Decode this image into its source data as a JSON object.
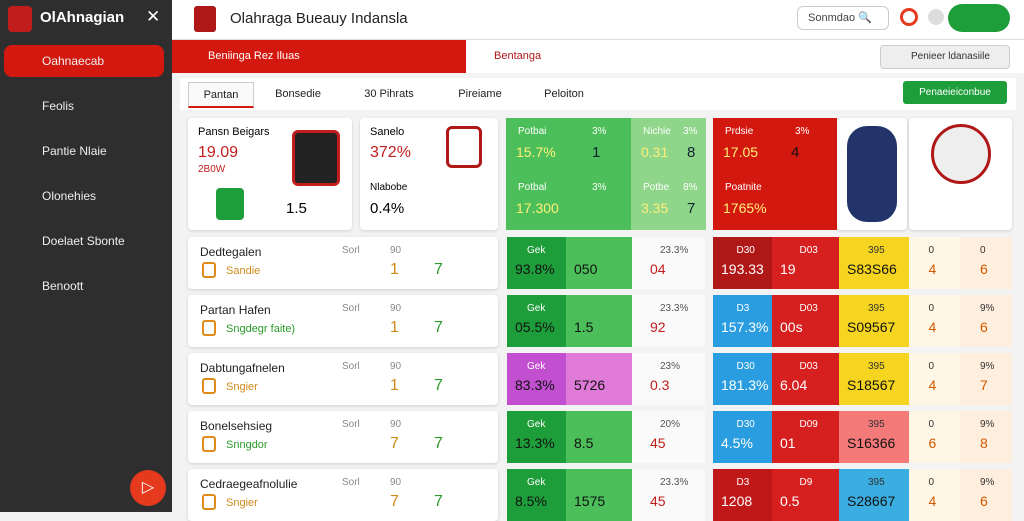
{
  "sidebar": {
    "brand": "OlAhnagian",
    "nav": [
      "Oahnaecab",
      "Feolis",
      "Pantie Nlaie",
      "Olonehies",
      "Doelaet Sbonte",
      "Benoott"
    ]
  },
  "header": {
    "title": "Olahraga Bueauy Indansla",
    "search": "Sonmdao"
  },
  "tabs": {
    "active": "Beniinga Rez Iluas",
    "second": "Bentanga",
    "action": "Penieer ldanasiile"
  },
  "subtabs": [
    "Pantan",
    "Bonsedie",
    "30 Pihrats",
    "Pireiame",
    "Peloiton"
  ],
  "subaction": "Penaeieiconbue",
  "summary": {
    "card1": {
      "title": "Pansn Beigars",
      "value": "19.09",
      "sub": "2B0W",
      "score": "1.5"
    },
    "card2": {
      "title": "Sanelo",
      "value": "372%",
      "label": "Nlabobe",
      "value2": "0.4%"
    },
    "green": [
      {
        "label": "Potbai",
        "pct": "3%",
        "value": "15.7%",
        "num": "1"
      },
      {
        "label": "Nichie",
        "pct": "3%",
        "value": "0.31",
        "num": "8"
      },
      {
        "label": "Potbal",
        "pct": "3%",
        "value": "17.300"
      },
      {
        "label": "Potbe",
        "pct": "8%",
        "value": "3.35",
        "num": "7"
      }
    ],
    "red": [
      {
        "label": "Prdsie",
        "pct": "3%",
        "value": "17.05",
        "num": "4"
      },
      {
        "label": "Poatnite",
        "value": "1765%"
      }
    ]
  },
  "rows": [
    {
      "name": "Dedtegalen",
      "sub": "Sandie",
      "col1": "Sorl",
      "col2": "90",
      "a": "1",
      "b": "7",
      "mid": [
        {
          "label": "Gek",
          "value": "93.8%"
        },
        {
          "value": "050"
        },
        {
          "label": "23.3%",
          "value": "04"
        }
      ],
      "mid_colors": [
        "#1e9e3a",
        "#4cbf5a"
      ],
      "right": [
        {
          "label": "D30",
          "value": "193.33"
        },
        {
          "label": "D03",
          "value": "19"
        },
        {
          "label": "395",
          "value": "S83S66"
        },
        {
          "label": "0",
          "value": "4"
        },
        {
          "label": "0",
          "value": "6"
        }
      ],
      "right_colors": [
        "#b01818",
        "#d62020",
        "#f5d520"
      ]
    },
    {
      "name": "Partan Hafen",
      "sub": "Sngdegr faite)",
      "col1": "Sorl",
      "col2": "90",
      "a": "1",
      "b": "7",
      "mid": [
        {
          "label": "Gek",
          "value": "05.5%"
        },
        {
          "value": "1.5"
        },
        {
          "label": "23.3%",
          "value": "92"
        }
      ],
      "mid_colors": [
        "#1e9e3a",
        "#4cbf5a"
      ],
      "right": [
        {
          "label": "D3",
          "value": "157.3%"
        },
        {
          "label": "D03",
          "value": "00s"
        },
        {
          "label": "395",
          "value": "S09567"
        },
        {
          "label": "0",
          "value": "4"
        },
        {
          "label": "9%",
          "value": "6"
        }
      ],
      "right_colors": [
        "#2a9de0",
        "#d62020",
        "#f5d520"
      ]
    },
    {
      "name": "Dabtungafnelen",
      "sub": "Sngier",
      "col1": "Sorl",
      "col2": "90",
      "a": "1",
      "b": "7",
      "mid": [
        {
          "label": "Gek",
          "value": "83.3%"
        },
        {
          "value": "5726"
        },
        {
          "label": "23%",
          "value": "0.3"
        }
      ],
      "mid_colors": [
        "#c24fd0",
        "#e07ad8"
      ],
      "right": [
        {
          "label": "D30",
          "value": "181.3%"
        },
        {
          "label": "D03",
          "value": "6.04"
        },
        {
          "label": "395",
          "value": "S18567"
        },
        {
          "label": "0",
          "value": "4"
        },
        {
          "label": "9%",
          "value": "7"
        }
      ],
      "right_colors": [
        "#2a9de0",
        "#d62020",
        "#f5d520"
      ]
    },
    {
      "name": "Bonelsehsieg",
      "sub": "Snngdor",
      "col1": "Sorl",
      "col2": "90",
      "a": "7",
      "b": "7",
      "mid": [
        {
          "label": "Gek",
          "value": "13.3%"
        },
        {
          "value": "8.5"
        },
        {
          "label": "20%",
          "value": "45"
        }
      ],
      "mid_colors": [
        "#1e9e3a",
        "#4cbf5a"
      ],
      "right": [
        {
          "label": "D30",
          "value": "4.5%"
        },
        {
          "label": "D09",
          "value": "01"
        },
        {
          "label": "395",
          "value": "S16366"
        },
        {
          "label": "0",
          "value": "6"
        },
        {
          "label": "9%",
          "value": "8"
        }
      ],
      "right_colors": [
        "#2a9de0",
        "#d62020",
        "#f47a7a"
      ]
    },
    {
      "name": "Cedraegeafnolulie",
      "sub": "Sngier",
      "col1": "Sorl",
      "col2": "90",
      "a": "7",
      "b": "7",
      "mid": [
        {
          "label": "Gek",
          "value": "8.5%"
        },
        {
          "value": "1575"
        },
        {
          "label": "23.3%",
          "value": "45"
        }
      ],
      "mid_colors": [
        "#1e9e3a",
        "#4cbf5a"
      ],
      "right": [
        {
          "label": "D3",
          "value": "1208"
        },
        {
          "label": "D9",
          "value": "0.5"
        },
        {
          "label": "395",
          "value": "S28667"
        },
        {
          "label": "0",
          "value": "4"
        },
        {
          "label": "9%",
          "value": "6"
        }
      ],
      "right_colors": [
        "#c01818",
        "#d62020",
        "#3aaee0"
      ]
    }
  ]
}
